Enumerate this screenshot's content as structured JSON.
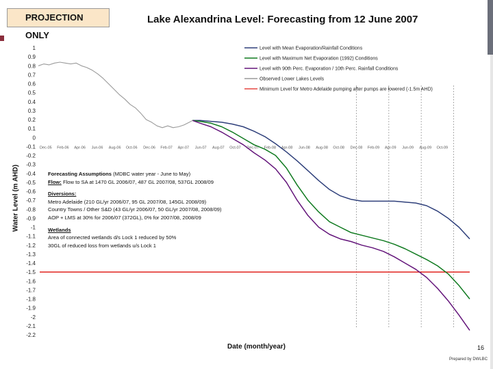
{
  "badge": "PROJECTION ONLY",
  "page_number": "16",
  "prepared_by": "Prepared by DWLBC",
  "colors": {
    "mean": "#2e3f7a",
    "max_evap": "#0f7a1f",
    "p90": "#63147a",
    "observed": "#9a9a9a",
    "minimum": "#e0201b",
    "badge_bg": "#fbe6c8"
  },
  "chart_data": {
    "type": "line",
    "title": "Lake Alexandrina Level: Forecasting from 12 June 2007",
    "xlabel": "Date (month/year)",
    "ylabel": "Water Level (m AHD)",
    "ylim": [
      -2.2,
      1.0
    ],
    "xlim": [
      0,
      40
    ],
    "y_ticks": [
      "1",
      "0.9",
      "0.8",
      "0.7",
      "0.6",
      "0.5",
      "0.4",
      "0.3",
      "0.2",
      "0.1",
      "0",
      "-0.1",
      "-0.2",
      "-0.3",
      "-0.4",
      "-0.5",
      "-0.6",
      "-0.7",
      "-0.8",
      "-0.9",
      "-1",
      "-1.1",
      "-1.2",
      "-1.3",
      "-1.4",
      "-1.5",
      "-1.6",
      "-1.7",
      "-1.8",
      "-1.9",
      "-2",
      "-2.1",
      "-2.2"
    ],
    "x_ticks": [
      "Dec-05",
      "Feb-06",
      "Apr-06",
      "Jun-06",
      "Aug-06",
      "Oct-06",
      "Dec-06",
      "Feb-07",
      "Apr-07",
      "Jun-07",
      "Aug-07",
      "Oct-07",
      "Dec-07",
      "Feb-08",
      "Apr-08",
      "Jun-08",
      "Aug-08",
      "Oct-08",
      "Dec-08",
      "Feb-09",
      "Apr-09",
      "Jun-09",
      "Aug-09",
      "Oct-09"
    ],
    "x_tick_positions": [
      0,
      1.6,
      3.2,
      4.8,
      6.4,
      8,
      9.6,
      11.2,
      12.8,
      14.4,
      16,
      17.6,
      19.2,
      20.8,
      22.4,
      24,
      25.6,
      27.2,
      28.8,
      30.4,
      32,
      33.6,
      35.2,
      36.8
    ],
    "vertical_markers": [
      29.5,
      32.5,
      35.5,
      38.5
    ],
    "threshold": {
      "name": "Minimum Level for Metro Adelaide pumping after pumps are lowered (-1.5m AHD)",
      "value": -1.5
    },
    "series": [
      {
        "name": "Level with Mean Evaporation/Rainfall Conditions",
        "x": [
          14.3,
          15,
          16,
          17,
          18,
          19,
          20,
          21,
          22,
          23,
          24,
          25,
          26,
          27,
          28,
          29,
          30,
          31,
          32,
          33,
          34,
          35,
          36,
          37,
          38,
          39,
          40
        ],
        "values": [
          0.19,
          0.19,
          0.18,
          0.17,
          0.15,
          0.12,
          0.07,
          0.01,
          -0.07,
          -0.16,
          -0.26,
          -0.37,
          -0.48,
          -0.58,
          -0.65,
          -0.69,
          -0.71,
          -0.71,
          -0.71,
          -0.71,
          -0.72,
          -0.73,
          -0.76,
          -0.82,
          -0.9,
          -1.0,
          -1.13
        ]
      },
      {
        "name": "Level with Maximum Net Evaporation (1992) Conditions",
        "x": [
          14.3,
          15,
          16,
          17,
          18,
          19,
          20,
          21,
          22,
          23,
          24,
          25,
          26,
          27,
          28,
          29,
          30,
          31,
          32,
          33,
          34,
          35,
          36,
          37,
          38,
          39,
          40
        ],
        "values": [
          0.19,
          0.18,
          0.16,
          0.12,
          0.06,
          -0.01,
          -0.08,
          -0.13,
          -0.2,
          -0.34,
          -0.53,
          -0.7,
          -0.83,
          -0.94,
          -1.0,
          -1.06,
          -1.09,
          -1.12,
          -1.15,
          -1.19,
          -1.24,
          -1.3,
          -1.36,
          -1.43,
          -1.52,
          -1.65,
          -1.8
        ]
      },
      {
        "name": "Level with 90th Perc. Evaporation / 10th Perc. Rainfall Conditions",
        "x": [
          14.3,
          15,
          16,
          17,
          18,
          19,
          20,
          21,
          22,
          23,
          24,
          25,
          26,
          27,
          28,
          29,
          30,
          31,
          32,
          33,
          34,
          35,
          36,
          37,
          38,
          39,
          40
        ],
        "values": [
          0.19,
          0.16,
          0.12,
          0.06,
          -0.01,
          -0.08,
          -0.17,
          -0.25,
          -0.35,
          -0.5,
          -0.7,
          -0.87,
          -1.0,
          -1.08,
          -1.13,
          -1.16,
          -1.2,
          -1.23,
          -1.27,
          -1.33,
          -1.4,
          -1.47,
          -1.56,
          -1.68,
          -1.82,
          -1.98,
          -2.15
        ]
      },
      {
        "name": "Observed Lower Lakes Levels",
        "x": [
          0,
          0.5,
          1,
          1.5,
          2,
          2.5,
          3,
          3.5,
          4,
          4.5,
          5,
          5.5,
          6,
          6.5,
          7,
          7.5,
          8,
          8.5,
          9,
          9.5,
          10,
          10.5,
          11,
          11.5,
          12,
          12.5,
          13,
          13.5,
          14,
          14.3
        ],
        "values": [
          0.8,
          0.82,
          0.81,
          0.83,
          0.84,
          0.83,
          0.82,
          0.83,
          0.8,
          0.78,
          0.75,
          0.71,
          0.66,
          0.6,
          0.54,
          0.48,
          0.43,
          0.37,
          0.33,
          0.27,
          0.2,
          0.17,
          0.13,
          0.11,
          0.13,
          0.11,
          0.12,
          0.14,
          0.17,
          0.19
        ]
      }
    ],
    "legend": [
      "Level with Mean Evaporation/Rainfall Conditions",
      "Level with Maximum Net Evaporation (1992) Conditions",
      "Level with 90th Perc. Evaporation / 10th Perc. Rainfall Conditions",
      "Observed Lower Lakes Levels",
      "Minimum Level for Metro Adelaide pumping after pumps are lowered (-1.5m AHD)"
    ]
  },
  "assumptions": {
    "heading": "Forecasting Assumptions",
    "heading_suffix": "(MDBC water year - June to May)",
    "flow_label": "Flow:",
    "flow_text": "Flow to SA at 1470 GL 2006/07, 487 GL 2007/08, 537GL 2008/09",
    "diversions_heading": "Diversions:",
    "diversion_lines": [
      "Metro Adelaide (210 GL/yr 2006/07, 95 GL 2007/08, 145GL 2008/09)",
      "Country Towns / Other S&D (43 GL/yr 2006/07, 50 GL/yr 2007/08, 2008/09)",
      "AOP + LMS at 30% for 2006/07 (372GL), 0% for 2007/08, 2008/09"
    ],
    "wetlands_heading": "Wetlands",
    "wetland_lines": [
      "Area of connected wetlands d/s Lock 1 reduced by 50%",
      "30GL of reduced loss from wetlands u/s Lock 1"
    ]
  }
}
